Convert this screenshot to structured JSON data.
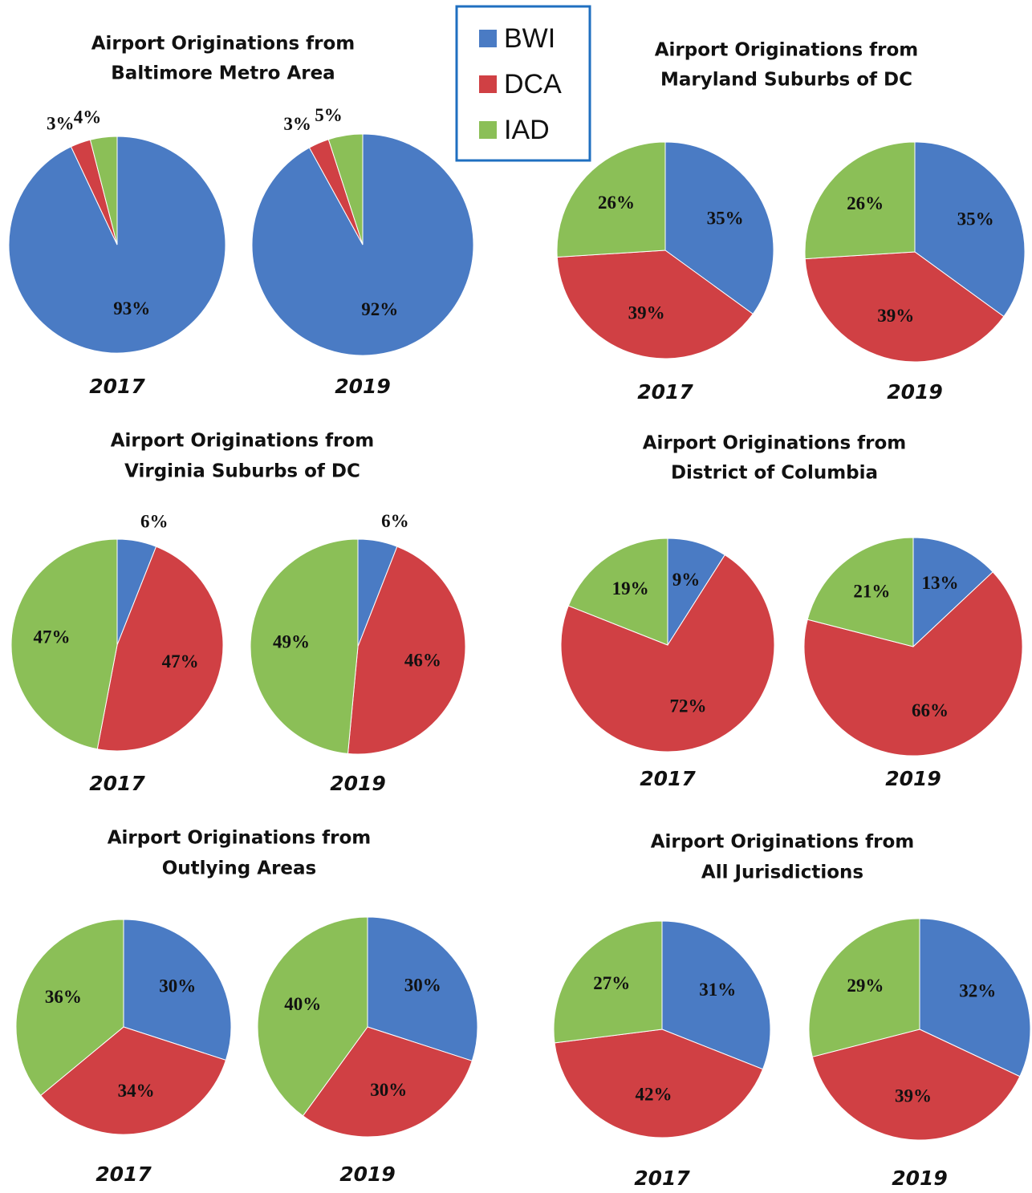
{
  "legend": {
    "names": [
      "BWI",
      "DCA",
      "IAD"
    ],
    "colors": [
      "#4a7bc4",
      "#d04044",
      "#8bbf57"
    ]
  },
  "chart_data": [
    {
      "type": "pie",
      "title": [
        "Airport Originations from",
        "Baltimore Metro Area"
      ],
      "pies": [
        {
          "label": "2017",
          "values": [
            93,
            3,
            4
          ],
          "value_labels": [
            "93%",
            "3%",
            "4%"
          ]
        },
        {
          "label": "2019",
          "values": [
            92,
            3,
            5
          ],
          "value_labels": [
            "92%",
            "3%",
            "5%"
          ]
        }
      ]
    },
    {
      "type": "pie",
      "title": [
        "Airport Originations from",
        "Maryland Suburbs of DC"
      ],
      "pies": [
        {
          "label": "2017",
          "values": [
            35,
            39,
            26
          ],
          "value_labels": [
            "35%",
            "39%",
            "26%"
          ]
        },
        {
          "label": "2019",
          "values": [
            35,
            39,
            26
          ],
          "value_labels": [
            "35%",
            "39%",
            "26%"
          ]
        }
      ]
    },
    {
      "type": "pie",
      "title": [
        "Airport Originations from",
        "Virginia Suburbs of DC"
      ],
      "pies": [
        {
          "label": "2017",
          "values": [
            6,
            47,
            47
          ],
          "value_labels": [
            "6%",
            "47%",
            "47%"
          ]
        },
        {
          "label": "2019",
          "values": [
            6,
            46,
            49
          ],
          "value_labels": [
            "6%",
            "46%",
            "49%"
          ]
        }
      ]
    },
    {
      "type": "pie",
      "title": [
        "Airport Originations from",
        "District of Columbia"
      ],
      "pies": [
        {
          "label": "2017",
          "values": [
            9,
            72,
            19
          ],
          "value_labels": [
            "9%",
            "72%",
            "19%"
          ]
        },
        {
          "label": "2019",
          "values": [
            13,
            66,
            21
          ],
          "value_labels": [
            "13%",
            "66%",
            "21%"
          ]
        }
      ]
    },
    {
      "type": "pie",
      "title": [
        "Airport Originations from",
        "Outlying Areas"
      ],
      "pies": [
        {
          "label": "2017",
          "values": [
            30,
            34,
            36
          ],
          "value_labels": [
            "30%",
            "34%",
            "36%"
          ]
        },
        {
          "label": "2019",
          "values": [
            30,
            30,
            40
          ],
          "value_labels": [
            "30%",
            "30%",
            "40%"
          ]
        }
      ]
    },
    {
      "type": "pie",
      "title": [
        "Airport Originations from",
        "All Jurisdictions"
      ],
      "pies": [
        {
          "label": "2017",
          "values": [
            31,
            42,
            27
          ],
          "value_labels": [
            "31%",
            "42%",
            "27%"
          ]
        },
        {
          "label": "2019",
          "values": [
            32,
            39,
            29
          ],
          "value_labels": [
            "32%",
            "39%",
            "29%"
          ]
        }
      ]
    }
  ]
}
